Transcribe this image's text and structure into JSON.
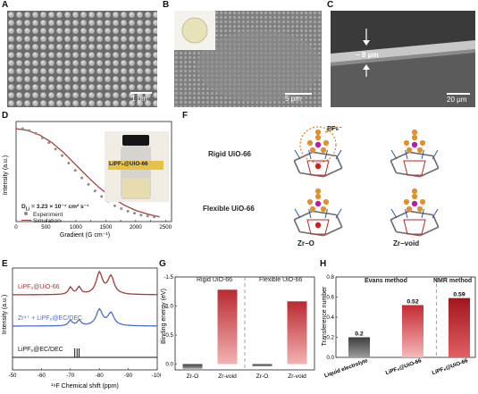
{
  "panels": {
    "A": {
      "label": "A",
      "scale": "1 μm"
    },
    "B": {
      "label": "B",
      "scale": "5 μm"
    },
    "C": {
      "label": "C",
      "scale": "20 μm",
      "thickness": "~ 8 μm"
    },
    "D": {
      "label": "D",
      "vial_label": "LiPF₆@UiO-66",
      "dlabel_main": "D",
      "dlabel_sub": "Li",
      "dlabel_value": " = 3.23 × 10⁻⁷ cm² s⁻¹",
      "legend_experiment": "Experiment",
      "legend_simulation": "Simulation",
      "ylabel": "Intensity (a.u.)",
      "xlabel": "Gradient (G cm⁻¹)"
    },
    "E": {
      "label": "E",
      "trace1": "LiPF₆@UiO-66",
      "trace2": "Zr⁴⁺ + LiPF₆@EC/DEC",
      "trace3": "LiPF₆@EC/DEC",
      "ylabel": "Intensity (a.u.)",
      "xlabel": "¹⁹F Chemical shift (ppm)"
    },
    "F": {
      "label": "F",
      "row1": "Rigid UiO-66",
      "row2": "Flexible UiO-66",
      "col1": "Zr−O",
      "col2": "Zr−void",
      "pf6": "PF₆⁻"
    },
    "G": {
      "label": "G",
      "group1": "Rigid UiO-66",
      "group2": "Flexible UiO-66",
      "ylabel": "Binding energy (eV)"
    },
    "H": {
      "label": "H",
      "group1": "Evans method",
      "group2": "NMR method",
      "ylabel": "Transference number"
    }
  },
  "chart_data": [
    {
      "type": "scatter",
      "panel": "D",
      "xlabel": "Gradient (G cm⁻¹)",
      "ylabel": "Intensity (a.u.)",
      "xlim": [
        0,
        2600
      ],
      "xticks": [
        0,
        250,
        500,
        750,
        1000,
        1250,
        1500,
        1750,
        2000,
        2250,
        2500
      ],
      "series": [
        {
          "name": "Experiment",
          "style": "points",
          "x": [
            110,
            220,
            330,
            440,
            550,
            660,
            770,
            880,
            990,
            1100,
            1210,
            1320,
            1430,
            1540,
            1650,
            1760,
            1870,
            1980,
            2090,
            2200,
            2310
          ],
          "y": [
            1.0,
            0.98,
            0.95,
            0.9,
            0.85,
            0.78,
            0.71,
            0.63,
            0.55,
            0.47,
            0.4,
            0.33,
            0.27,
            0.22,
            0.17,
            0.14,
            0.11,
            0.09,
            0.07,
            0.06,
            0.05
          ]
        },
        {
          "name": "Simulation",
          "style": "line",
          "x": [
            0,
            200,
            400,
            600,
            800,
            1000,
            1200,
            1400,
            1600,
            1800,
            2000,
            2200,
            2400
          ],
          "y": [
            1.0,
            0.98,
            0.93,
            0.85,
            0.74,
            0.61,
            0.48,
            0.36,
            0.26,
            0.18,
            0.12,
            0.08,
            0.05
          ]
        }
      ]
    },
    {
      "type": "line",
      "panel": "E",
      "xlabel": "¹⁹F Chemical shift (ppm)",
      "xticks": [
        -50,
        -60,
        -70,
        -80,
        -90,
        -100
      ],
      "xlim": [
        -50,
        -100
      ],
      "series": [
        {
          "name": "LiPF₆@UiO-66",
          "color": "#a23a3a"
        },
        {
          "name": "Zr⁴⁺ + LiPF₆@EC/DEC",
          "color": "#4a6bd0"
        },
        {
          "name": "LiPF₆@EC/DEC",
          "color": "#111111"
        }
      ]
    },
    {
      "type": "bar",
      "panel": "G",
      "ylabel": "Binding energy (eV)",
      "ylim": [
        0.1,
        -1.5
      ],
      "yticks": [
        0.0,
        -0.5,
        -1.0,
        -1.5
      ],
      "groups": [
        "Rigid UiO-66",
        "Flexible UiO-66"
      ],
      "categories": [
        "Zr-O",
        "Zr-void",
        "Zr-O",
        "Zr-void"
      ],
      "values": [
        0.08,
        -1.28,
        0.04,
        -1.08
      ],
      "colors": [
        "#555555",
        "#c0353a",
        "#555555",
        "#c0353a"
      ]
    },
    {
      "type": "bar",
      "panel": "H",
      "ylabel": "Transference number",
      "ylim": [
        0.0,
        0.8
      ],
      "yticks": [
        0.0,
        0.2,
        0.4,
        0.6,
        0.8
      ],
      "categories": [
        "Liquid electrolyte",
        "LiPF₆@UiO-66",
        "LiPF₆@UiO-66"
      ],
      "values": [
        0.2,
        0.52,
        0.59
      ],
      "value_labels": [
        "0.2",
        "0.52",
        "0.59"
      ],
      "colors": [
        "#666666",
        "#d0363c",
        "#a81e25"
      ]
    }
  ]
}
